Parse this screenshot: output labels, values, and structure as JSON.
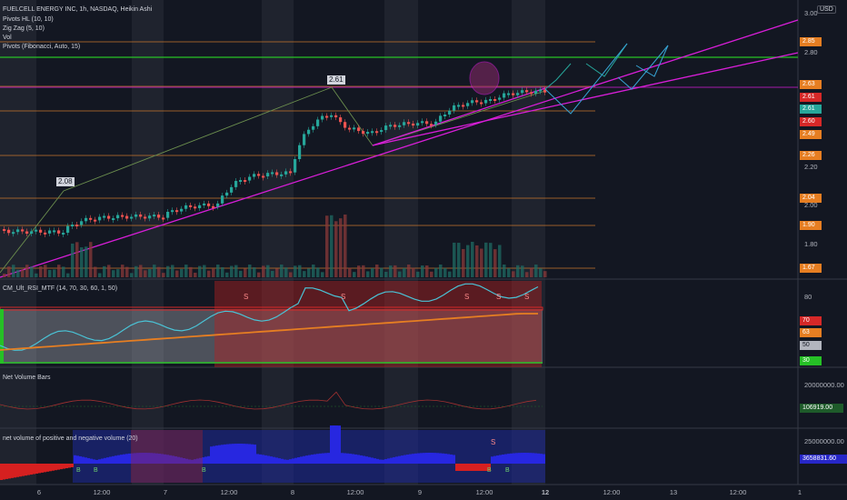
{
  "symbol_title": "FUELCELL ENERGY INC, 1h, NASDAQ, Heikin Ashi",
  "currency": "USD",
  "indicators": [
    "Pivots HL (10, 10)",
    "Zig Zag (5, 10)",
    "Vol",
    "Pivots (Fibonacci, Auto, 15)"
  ],
  "pane_titles": {
    "rsi": "CM_Ult_RSI_MTF (14, 70, 30, 60, 1, 50)",
    "net_volume_bars": "Net Volume Bars",
    "net_volume_pn": "net volume of positive and negative volume (20)"
  },
  "price_axis": [
    "3.00",
    "2.80",
    "2.60",
    "2.40",
    "2.20",
    "2.00",
    "1.80"
  ],
  "price_tags": [
    {
      "text": "2.85",
      "color": "#e67e22"
    },
    {
      "text": "2.63",
      "color": "#e67e22"
    },
    {
      "text": "2.61",
      "color": "#d62828"
    },
    {
      "text": "2.61",
      "color": "#26a69a"
    },
    {
      "text": "2.60",
      "color": "#d62828"
    },
    {
      "text": "2.49",
      "color": "#e67e22"
    },
    {
      "text": "2.26",
      "color": "#e67e22"
    },
    {
      "text": "2.04",
      "color": "#e67e22"
    },
    {
      "text": "1.90",
      "color": "#e67e22"
    },
    {
      "text": "1.67",
      "color": "#e67e22"
    }
  ],
  "pivot_labels": [
    "2.61",
    "2.08"
  ],
  "rsi_axis": [
    "80"
  ],
  "rsi_tags": [
    {
      "text": "70",
      "color": "#d62828"
    },
    {
      "text": "63",
      "color": "#e67e22"
    },
    {
      "text": "50",
      "color": "#b2b5be"
    },
    {
      "text": "30",
      "color": "#26c026"
    }
  ],
  "nvb_axis": "20000000.00",
  "nvb_tag": "106919.00",
  "nvpn_axis": "25000000.00",
  "nvpn_tag": "3658831.60",
  "signal_letters": [
    "S",
    "S",
    "S",
    "S",
    "S",
    "S"
  ],
  "buy_letters": [
    "B",
    "B",
    "B",
    "B",
    "B"
  ],
  "time_axis": [
    "6",
    "12:00",
    "7",
    "12:00",
    "8",
    "12:00",
    "9",
    "12:00",
    "12",
    "12:00",
    "13",
    "12:00",
    "1"
  ],
  "colors": {
    "up": "#26a69a",
    "down": "#ef5350",
    "trendline": "#d81ed8",
    "fib": "#c8762c",
    "resistance": "#27c227",
    "arrow_green": "#26a69a",
    "arrow_cyan": "#36a3d4",
    "rsi_line": "#4ac3d6",
    "rsi_ma": "#e67e22"
  }
}
